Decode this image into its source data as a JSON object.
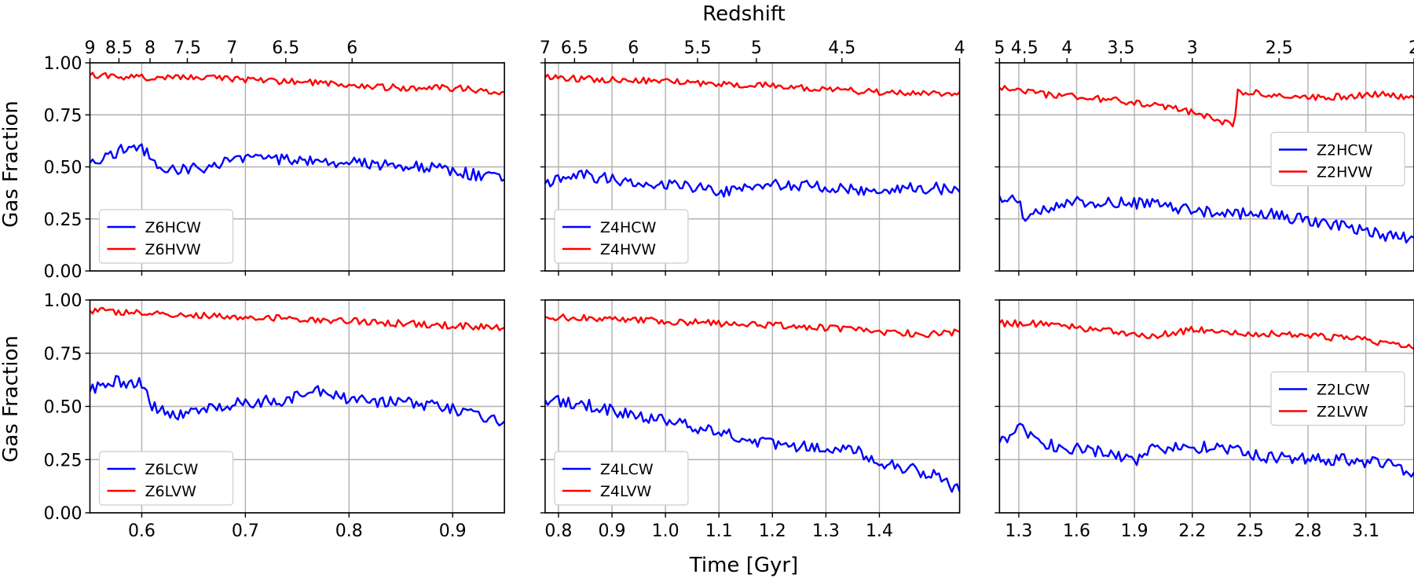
{
  "figure": {
    "top_axis_label": "Redshift",
    "x_axis_label": "Time [Gyr]",
    "y_axis_label": "Gas Fraction",
    "y_tick_labels": [
      "0.00",
      "0.25",
      "0.50",
      "0.75",
      "1.00"
    ],
    "colors": {
      "CW": "#0000ff",
      "VW": "#ff0000",
      "grid": "#b0b0b0"
    }
  },
  "chart_data": [
    {
      "type": "line",
      "row": 1,
      "col": 1,
      "xlim": [
        0.55,
        0.95
      ],
      "ylim": [
        0,
        1
      ],
      "x_ticks": [
        0.6,
        0.7,
        0.8,
        0.9
      ],
      "x_tick_labels": [
        "0.6",
        "0.7",
        "0.8",
        "0.9"
      ],
      "redshift_tick_positions": [
        0.55,
        0.578,
        0.608,
        0.644,
        0.687,
        0.739,
        0.803,
        0.882
      ],
      "redshift_tick_labels": [
        "9",
        "8.5",
        "8",
        "7.5",
        "7",
        "6.5",
        "6",
        ""
      ],
      "legend_location": "lower left",
      "series": [
        {
          "name": "Z6HCW",
          "color": "#0000ff",
          "x_points": [
            0.55,
            0.57,
            0.59,
            0.6,
            0.62,
            0.66,
            0.7,
            0.75,
            0.8,
            0.85,
            0.9,
            0.95
          ],
          "y_points": [
            0.52,
            0.56,
            0.6,
            0.59,
            0.48,
            0.5,
            0.54,
            0.53,
            0.52,
            0.51,
            0.48,
            0.44
          ]
        },
        {
          "name": "Z6HVW",
          "color": "#ff0000",
          "x_points": [
            0.55,
            0.6,
            0.65,
            0.7,
            0.75,
            0.8,
            0.85,
            0.9,
            0.95
          ],
          "y_points": [
            0.94,
            0.93,
            0.93,
            0.92,
            0.91,
            0.89,
            0.88,
            0.88,
            0.86
          ]
        }
      ]
    },
    {
      "type": "line",
      "row": 1,
      "col": 2,
      "xlim": [
        0.775,
        1.55
      ],
      "ylim": [
        0,
        1
      ],
      "x_ticks": [
        0.8,
        0.9,
        1.0,
        1.1,
        1.2,
        1.3,
        1.4
      ],
      "x_tick_labels": [
        "0.8",
        "0.9",
        "1.0",
        "1.1",
        "1.2",
        "1.3",
        "1.4"
      ],
      "redshift_tick_positions": [
        0.775,
        0.83,
        0.94,
        1.06,
        1.17,
        1.33,
        1.55
      ],
      "redshift_tick_labels": [
        "7",
        "6.5",
        "6",
        "5.5",
        "5",
        "4.5",
        "4"
      ],
      "legend_location": "lower left",
      "series": [
        {
          "name": "Z4HCW",
          "color": "#0000ff",
          "x_points": [
            0.775,
            0.8,
            0.85,
            0.9,
            1.0,
            1.1,
            1.2,
            1.3,
            1.4,
            1.5,
            1.55
          ],
          "y_points": [
            0.42,
            0.45,
            0.46,
            0.44,
            0.42,
            0.38,
            0.42,
            0.4,
            0.39,
            0.4,
            0.38
          ]
        },
        {
          "name": "Z4HVW",
          "color": "#ff0000",
          "x_points": [
            0.775,
            0.9,
            1.0,
            1.1,
            1.2,
            1.3,
            1.4,
            1.5,
            1.55
          ],
          "y_points": [
            0.93,
            0.92,
            0.91,
            0.9,
            0.89,
            0.87,
            0.86,
            0.85,
            0.86
          ]
        }
      ]
    },
    {
      "type": "line",
      "row": 1,
      "col": 3,
      "xlim": [
        1.2,
        3.35
      ],
      "ylim": [
        0,
        1
      ],
      "x_ticks": [
        1.3,
        1.6,
        1.9,
        2.2,
        2.5,
        2.8,
        3.1
      ],
      "x_tick_labels": [
        "1.3",
        "1.6",
        "1.9",
        "2.2",
        "2.5",
        "2.8",
        "3.1"
      ],
      "redshift_tick_positions": [
        1.2,
        1.33,
        1.55,
        1.83,
        2.2,
        2.65,
        3.35
      ],
      "redshift_tick_labels": [
        "5",
        "4.5",
        "4",
        "3.5",
        "3",
        "2.5",
        "2"
      ],
      "legend_location": "center right",
      "series": [
        {
          "name": "Z2HCW",
          "color": "#0000ff",
          "x_points": [
            1.2,
            1.3,
            1.33,
            1.45,
            1.6,
            1.8,
            2.0,
            2.2,
            2.4,
            2.6,
            2.8,
            3.0,
            3.2,
            3.35
          ],
          "y_points": [
            0.36,
            0.33,
            0.26,
            0.3,
            0.33,
            0.33,
            0.32,
            0.29,
            0.27,
            0.28,
            0.24,
            0.21,
            0.17,
            0.16
          ]
        },
        {
          "name": "Z2HVW",
          "color": "#ff0000",
          "x_points": [
            1.2,
            1.4,
            1.6,
            1.8,
            2.0,
            2.2,
            2.35,
            2.42,
            2.43,
            2.6,
            2.8,
            3.0,
            3.2,
            3.35
          ],
          "y_points": [
            0.88,
            0.85,
            0.84,
            0.82,
            0.8,
            0.76,
            0.72,
            0.7,
            0.86,
            0.85,
            0.83,
            0.84,
            0.85,
            0.83
          ]
        }
      ]
    },
    {
      "type": "line",
      "row": 2,
      "col": 1,
      "xlim": [
        0.55,
        0.95
      ],
      "ylim": [
        0,
        1
      ],
      "x_ticks": [
        0.6,
        0.7,
        0.8,
        0.9
      ],
      "x_tick_labels": [
        "0.6",
        "0.7",
        "0.8",
        "0.9"
      ],
      "legend_location": "lower left",
      "series": [
        {
          "name": "Z6LCW",
          "color": "#0000ff",
          "x_points": [
            0.55,
            0.57,
            0.6,
            0.61,
            0.63,
            0.66,
            0.7,
            0.74,
            0.77,
            0.8,
            0.85,
            0.9,
            0.95
          ],
          "y_points": [
            0.57,
            0.62,
            0.61,
            0.5,
            0.46,
            0.48,
            0.52,
            0.53,
            0.58,
            0.53,
            0.52,
            0.49,
            0.43
          ]
        },
        {
          "name": "Z6LVW",
          "color": "#ff0000",
          "x_points": [
            0.55,
            0.6,
            0.65,
            0.7,
            0.75,
            0.8,
            0.85,
            0.9,
            0.95
          ],
          "y_points": [
            0.95,
            0.94,
            0.93,
            0.92,
            0.91,
            0.9,
            0.89,
            0.88,
            0.87
          ]
        }
      ]
    },
    {
      "type": "line",
      "row": 2,
      "col": 2,
      "xlim": [
        0.775,
        1.55
      ],
      "ylim": [
        0,
        1
      ],
      "x_ticks": [
        0.8,
        0.9,
        1.0,
        1.1,
        1.2,
        1.3,
        1.4
      ],
      "x_tick_labels": [
        "0.8",
        "0.9",
        "1.0",
        "1.1",
        "1.2",
        "1.3",
        "1.4"
      ],
      "legend_location": "lower left",
      "series": [
        {
          "name": "Z4LCW",
          "color": "#0000ff",
          "x_points": [
            0.775,
            0.85,
            0.9,
            1.0,
            1.1,
            1.2,
            1.3,
            1.35,
            1.4,
            1.5,
            1.55
          ],
          "y_points": [
            0.53,
            0.51,
            0.48,
            0.43,
            0.38,
            0.32,
            0.31,
            0.3,
            0.24,
            0.18,
            0.1
          ]
        },
        {
          "name": "Z4LVW",
          "color": "#ff0000",
          "x_points": [
            0.775,
            0.9,
            1.0,
            1.1,
            1.2,
            1.3,
            1.4,
            1.5,
            1.55
          ],
          "y_points": [
            0.92,
            0.91,
            0.9,
            0.89,
            0.88,
            0.87,
            0.85,
            0.84,
            0.85
          ]
        }
      ]
    },
    {
      "type": "line",
      "row": 2,
      "col": 3,
      "xlim": [
        1.2,
        3.35
      ],
      "ylim": [
        0,
        1
      ],
      "x_ticks": [
        1.3,
        1.6,
        1.9,
        2.2,
        2.5,
        2.8,
        3.1
      ],
      "x_tick_labels": [
        "1.3",
        "1.6",
        "1.9",
        "2.2",
        "2.5",
        "2.8",
        "3.1"
      ],
      "legend_location": "center right",
      "series": [
        {
          "name": "Z2LCW",
          "color": "#0000ff",
          "x_points": [
            1.2,
            1.25,
            1.3,
            1.4,
            1.6,
            1.8,
            1.9,
            2.0,
            2.2,
            2.4,
            2.6,
            2.8,
            3.0,
            3.2,
            3.35
          ],
          "y_points": [
            0.33,
            0.34,
            0.42,
            0.33,
            0.3,
            0.28,
            0.23,
            0.3,
            0.31,
            0.3,
            0.26,
            0.25,
            0.25,
            0.23,
            0.19
          ]
        },
        {
          "name": "Z2LVW",
          "color": "#ff0000",
          "x_points": [
            1.2,
            1.4,
            1.6,
            1.8,
            2.0,
            2.2,
            2.4,
            2.6,
            2.8,
            3.0,
            3.2,
            3.35
          ],
          "y_points": [
            0.89,
            0.89,
            0.87,
            0.85,
            0.83,
            0.86,
            0.85,
            0.84,
            0.83,
            0.82,
            0.8,
            0.77
          ]
        }
      ]
    }
  ]
}
